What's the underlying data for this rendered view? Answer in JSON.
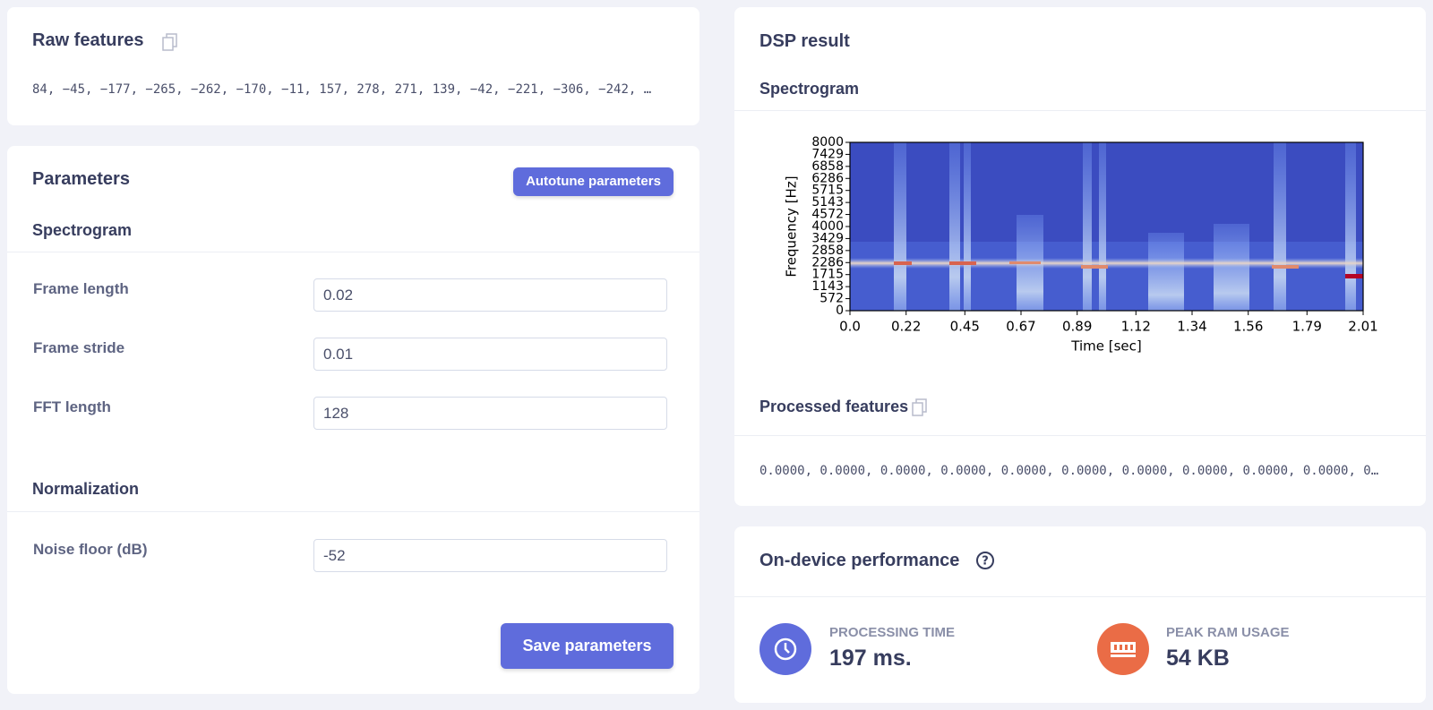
{
  "raw_features": {
    "title": "Raw features",
    "values": "84, −45, −177, −265, −262, −170, −11, 157, 278, 271, 139, −42, −221, −306, −242, …"
  },
  "parameters": {
    "title": "Parameters",
    "autotune_button": "Autotune parameters",
    "sections": [
      {
        "title": "Spectrogram",
        "fields": [
          {
            "label": "Frame length",
            "value": "0.02"
          },
          {
            "label": "Frame stride",
            "value": "0.01"
          },
          {
            "label": "FFT length",
            "value": "128"
          }
        ]
      },
      {
        "title": "Normalization",
        "fields": [
          {
            "label": "Noise floor (dB)",
            "value": "-52"
          }
        ]
      }
    ],
    "save_button": "Save parameters"
  },
  "dsp_result": {
    "title": "DSP result",
    "spectrogram": {
      "title": "Spectrogram",
      "plot": {
        "xlabel": "Time [sec]",
        "ylabel": "Frequency [Hz]",
        "xlim": [
          0,
          2.01
        ],
        "ylim": [
          0,
          8000
        ],
        "xticks": [
          {
            "value": 0,
            "label": "0.0"
          },
          0.22,
          0.45,
          0.67,
          0.89,
          1.12,
          1.34,
          1.56,
          1.79,
          2.01
        ],
        "yticks": [
          0,
          572,
          1143,
          1715,
          2286,
          2858,
          3429,
          4000,
          4572,
          5143,
          5715,
          6286,
          6858,
          7429,
          8000
        ]
      }
    },
    "processed_features": {
      "title": "Processed features",
      "values": "0.0000, 0.0000, 0.0000, 0.0000, 0.0000, 0.0000, 0.0000, 0.0000, 0.0000, 0.0000, 0…"
    }
  },
  "performance": {
    "title": "On-device performance",
    "metrics": [
      {
        "label": "PROCESSING TIME",
        "value": "197 ms."
      },
      {
        "label": "PEAK RAM USAGE",
        "value": "54 KB"
      }
    ]
  }
}
